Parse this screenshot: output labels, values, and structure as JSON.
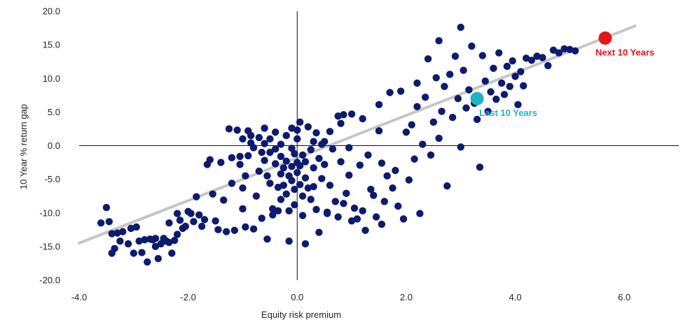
{
  "chart_data": {
    "type": "scatter",
    "title": "",
    "xlabel": "Equity risk premium",
    "ylabel": "10 Year % return gap",
    "xlim": [
      -4.0,
      7.0
    ],
    "ylim": [
      -20.0,
      20.0
    ],
    "x_ticks": [
      -4.0,
      -2.0,
      0.0,
      2.0,
      4.0,
      6.0
    ],
    "x_tick_labels": [
      "-4.0",
      "-2.0",
      "0.0",
      "2.0",
      "4.0",
      "6.0"
    ],
    "y_ticks": [
      20,
      15,
      10,
      5,
      0,
      -5,
      -10,
      -15,
      -20
    ],
    "y_tick_labels": [
      "20.0",
      "15.0",
      "10.0",
      "5.0",
      "0.0",
      "-5.0",
      "-10.0",
      "-15.0",
      "-20.0"
    ],
    "grid": false,
    "legend": "none",
    "colors": {
      "points": "#0d1b6e",
      "trend": "#c6c6c6",
      "next": "#e8141b",
      "last": "#1fb5c0",
      "axis": "#111111",
      "text": "#222222"
    },
    "trendline": {
      "x": [
        -4.0,
        6.2
      ],
      "y": [
        -14.5,
        17.8
      ]
    },
    "series": [
      {
        "values": [
          [
            -3.6,
            -11.5
          ],
          [
            -3.5,
            -9.2
          ],
          [
            -3.45,
            -11.3
          ],
          [
            -3.4,
            -13.1
          ],
          [
            -3.4,
            -16.0
          ],
          [
            -3.35,
            -15.3
          ],
          [
            -3.3,
            -13.0
          ],
          [
            -3.25,
            -14.2
          ],
          [
            -3.2,
            -12.8
          ],
          [
            -3.1,
            -14.6
          ],
          [
            -3.05,
            -12.3
          ],
          [
            -3.0,
            -16.0
          ],
          [
            -2.95,
            -12.1
          ],
          [
            -2.9,
            -14.2
          ],
          [
            -2.85,
            -15.9
          ],
          [
            -2.8,
            -14.0
          ],
          [
            -2.75,
            -17.3
          ],
          [
            -2.7,
            -13.9
          ],
          [
            -2.65,
            -14.0
          ],
          [
            -2.6,
            -15.0
          ],
          [
            -2.6,
            -13.8
          ],
          [
            -2.55,
            -16.8
          ],
          [
            -2.5,
            -14.6
          ],
          [
            -2.45,
            -13.8
          ],
          [
            -2.4,
            -14.2
          ],
          [
            -2.35,
            -11.5
          ],
          [
            -2.35,
            -14.4
          ],
          [
            -2.3,
            -16.0
          ],
          [
            -2.25,
            -14.1
          ],
          [
            -2.2,
            -13.2
          ],
          [
            -2.2,
            -10.1
          ],
          [
            -2.15,
            -11.1
          ],
          [
            -2.1,
            -12.3
          ],
          [
            -2.05,
            -12.0
          ],
          [
            -2.0,
            -9.8
          ],
          [
            -1.95,
            -10.1
          ],
          [
            -1.9,
            -11.3
          ],
          [
            -1.85,
            -7.6
          ],
          [
            -1.8,
            -10.3
          ],
          [
            -1.75,
            -12.0
          ],
          [
            -1.7,
            -11.0
          ],
          [
            -1.65,
            -2.8
          ],
          [
            -1.6,
            -2.1
          ],
          [
            -1.55,
            -7.2
          ],
          [
            -1.5,
            -11.2
          ],
          [
            -1.45,
            -12.5
          ],
          [
            -1.4,
            -2.5
          ],
          [
            -1.35,
            -8.1
          ],
          [
            -1.3,
            -12.8
          ],
          [
            -1.25,
            2.5
          ],
          [
            -1.2,
            -1.8
          ],
          [
            -1.2,
            -5.6
          ],
          [
            -1.15,
            -12.6
          ],
          [
            -1.1,
            2.3
          ],
          [
            -1.05,
            -1.6
          ],
          [
            -1.05,
            -2.8
          ],
          [
            -1.0,
            -9.4
          ],
          [
            -1.0,
            -6.3
          ],
          [
            -0.95,
            -4.5
          ],
          [
            -0.95,
            -12.1
          ],
          [
            -0.9,
            2.2
          ],
          [
            -0.9,
            -1.5
          ],
          [
            -0.85,
            1.5
          ],
          [
            -0.85,
            0.4
          ],
          [
            -0.8,
            -0.3
          ],
          [
            -0.8,
            -12.4
          ],
          [
            -0.75,
            -7.5
          ],
          [
            -0.7,
            1.2
          ],
          [
            -0.7,
            -3.8
          ],
          [
            -0.65,
            -1.0
          ],
          [
            -0.6,
            2.6
          ],
          [
            -0.6,
            0.3
          ],
          [
            -0.6,
            -2.2
          ],
          [
            -0.55,
            -4.5
          ],
          [
            -0.55,
            -13.9
          ],
          [
            -0.5,
            1.0
          ],
          [
            -0.5,
            -1.0
          ],
          [
            -0.5,
            -5.6
          ],
          [
            -0.45,
            -9.4
          ],
          [
            -0.45,
            -10.3
          ],
          [
            -0.4,
            2.0
          ],
          [
            -0.4,
            -0.5
          ],
          [
            -0.4,
            -2.7
          ],
          [
            -0.35,
            -6.2
          ],
          [
            -0.35,
            -9.7
          ],
          [
            -0.3,
            0.2
          ],
          [
            -0.3,
            -1.6
          ],
          [
            -0.3,
            -4.2
          ],
          [
            -0.3,
            -8.0
          ],
          [
            -0.25,
            -3.3
          ],
          [
            -0.25,
            -5.9
          ],
          [
            -0.2,
            1.5
          ],
          [
            -0.2,
            -2.3
          ],
          [
            -0.2,
            -7.2
          ],
          [
            -0.15,
            -4.5
          ],
          [
            -0.15,
            -9.7
          ],
          [
            -0.15,
            -14.2
          ],
          [
            -0.1,
            -0.4
          ],
          [
            -0.1,
            -3.1
          ],
          [
            -0.1,
            -5.2
          ],
          [
            -0.05,
            -1.2
          ],
          [
            -0.05,
            -6.5
          ],
          [
            -0.05,
            -8.8
          ],
          [
            0.0,
            1.0
          ],
          [
            0.0,
            -2.5
          ],
          [
            0.0,
            -4.0
          ],
          [
            0.0,
            2.3
          ],
          [
            0.05,
            -3.0
          ],
          [
            0.05,
            -5.8
          ],
          [
            0.05,
            3.5
          ],
          [
            0.1,
            -1.4
          ],
          [
            0.1,
            -7.5
          ],
          [
            0.1,
            -10.4
          ],
          [
            0.15,
            -2.4
          ],
          [
            0.15,
            -4.8
          ],
          [
            0.15,
            -14.6
          ],
          [
            0.2,
            2.8
          ],
          [
            0.25,
            -0.6
          ],
          [
            0.25,
            -8.0
          ],
          [
            0.3,
            0.6
          ],
          [
            0.3,
            -3.3
          ],
          [
            0.3,
            -6.1
          ],
          [
            0.35,
            1.9
          ],
          [
            0.35,
            -9.5
          ],
          [
            0.4,
            -1.9
          ],
          [
            0.4,
            -12.9
          ],
          [
            0.45,
            -4.9
          ],
          [
            0.5,
            0.6
          ],
          [
            0.5,
            -2.8
          ],
          [
            0.55,
            -9.9
          ],
          [
            0.55,
            -10.1
          ],
          [
            0.6,
            2.1
          ],
          [
            0.6,
            -5.9
          ],
          [
            0.65,
            -0.5
          ],
          [
            0.7,
            -8.3
          ],
          [
            0.75,
            4.4
          ],
          [
            0.75,
            -10.6
          ],
          [
            0.8,
            3.3
          ],
          [
            0.8,
            -2.4
          ],
          [
            0.85,
            4.6
          ],
          [
            0.85,
            -8.6
          ],
          [
            0.9,
            -7.1
          ],
          [
            0.95,
            -0.3
          ],
          [
            0.95,
            -4.4
          ],
          [
            1.0,
            4.7
          ],
          [
            1.0,
            -11.2
          ],
          [
            1.05,
            -9.3
          ],
          [
            1.1,
            -10.9
          ],
          [
            1.15,
            -2.9
          ],
          [
            1.2,
            4.0
          ],
          [
            1.2,
            -9.7
          ],
          [
            1.25,
            -12.6
          ],
          [
            1.3,
            -1.4
          ],
          [
            1.35,
            -6.5
          ],
          [
            1.4,
            -7.4
          ],
          [
            1.45,
            -10.6
          ],
          [
            1.5,
            2.2
          ],
          [
            1.5,
            6.1
          ],
          [
            1.55,
            -11.7
          ],
          [
            1.6,
            -8.3
          ],
          [
            1.65,
            -4.5
          ],
          [
            1.7,
            7.9
          ],
          [
            1.75,
            -6.3
          ],
          [
            1.8,
            -3.7
          ],
          [
            1.85,
            -9.0
          ],
          [
            1.9,
            8.1
          ],
          [
            1.95,
            -10.9
          ],
          [
            2.0,
            2.0
          ],
          [
            2.05,
            -5.1
          ],
          [
            2.1,
            3.1
          ],
          [
            2.15,
            -2.0
          ],
          [
            2.2,
            5.8
          ],
          [
            2.2,
            9.3
          ],
          [
            2.25,
            -10.1
          ],
          [
            2.3,
            0.2
          ],
          [
            2.35,
            7.2
          ],
          [
            2.4,
            12.9
          ],
          [
            2.45,
            -1.4
          ],
          [
            2.5,
            3.5
          ],
          [
            2.55,
            10.1
          ],
          [
            2.6,
            1.1
          ],
          [
            2.6,
            15.6
          ],
          [
            2.65,
            5.1
          ],
          [
            2.7,
            8.8
          ],
          [
            2.75,
            -6.0
          ],
          [
            2.8,
            10.6
          ],
          [
            2.85,
            4.2
          ],
          [
            2.9,
            13.3
          ],
          [
            2.95,
            7.0
          ],
          [
            3.0,
            17.6
          ],
          [
            3.0,
            -0.2
          ],
          [
            3.05,
            11.2
          ],
          [
            3.1,
            5.6
          ],
          [
            3.15,
            8.3
          ],
          [
            3.2,
            14.8
          ],
          [
            3.25,
            6.3
          ],
          [
            3.3,
            3.9
          ],
          [
            3.35,
            -3.2
          ],
          [
            3.4,
            13.4
          ],
          [
            3.45,
            9.6
          ],
          [
            3.5,
            5.1
          ],
          [
            3.55,
            8.0
          ],
          [
            3.6,
            11.5
          ],
          [
            3.65,
            6.9
          ],
          [
            3.7,
            13.8
          ],
          [
            3.75,
            9.3
          ],
          [
            3.8,
            7.6
          ],
          [
            3.85,
            11.8
          ],
          [
            3.9,
            8.8
          ],
          [
            3.95,
            12.6
          ],
          [
            4.0,
            10.3
          ],
          [
            4.05,
            6.1
          ],
          [
            4.1,
            11.0
          ],
          [
            4.15,
            8.9
          ],
          [
            4.2,
            13.0
          ],
          [
            4.3,
            12.7
          ],
          [
            4.4,
            13.3
          ],
          [
            4.5,
            13.1
          ],
          [
            4.6,
            11.9
          ],
          [
            4.7,
            14.2
          ],
          [
            4.8,
            13.8
          ],
          [
            4.9,
            14.4
          ],
          [
            5.0,
            14.3
          ],
          [
            5.1,
            14.1
          ],
          [
            1.55,
            -2.6
          ],
          [
            -0.65,
            -10.8
          ],
          [
            -1.0,
            1.0
          ],
          [
            -0.1,
            2.6
          ],
          [
            0.45,
            0.2
          ],
          [
            0.2,
            -6.3
          ]
        ]
      }
    ],
    "highlights": [
      {
        "label": "Next 10 Years",
        "x": 5.65,
        "y": 16.0
      },
      {
        "label": "Last 10 Years",
        "x": 3.3,
        "y": 7.0
      }
    ]
  }
}
